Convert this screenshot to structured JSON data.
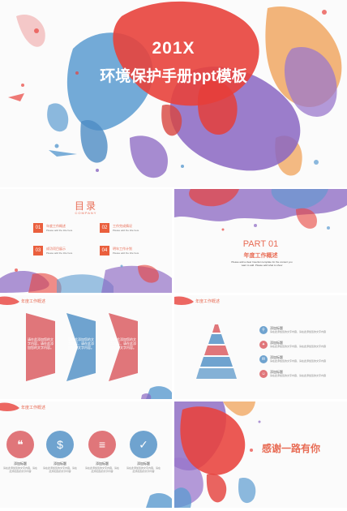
{
  "cover": {
    "year": "201X",
    "title": "环境保护手册ppt模板"
  },
  "toc": {
    "title": "目录",
    "subtitle": "COMPANY",
    "items": [
      {
        "num": "01",
        "label": "年度工作概述",
        "desc": "Please add the title here"
      },
      {
        "num": "02",
        "label": "工作完成情况",
        "desc": "Please add the title here"
      },
      {
        "num": "03",
        "label": "成功项目展示",
        "desc": "Please add the title here"
      },
      {
        "num": "04",
        "label": "明年工作计划",
        "desc": "Please add the title here"
      }
    ]
  },
  "part": {
    "number": "PART 01",
    "title": "年度工作概述",
    "desc": "Please add a clear Insertion template for the content you want to add. Please add what to show"
  },
  "section_header": "年度工作概述",
  "chevrons": [
    {
      "text": "请在此添加您的文字内容，请在此添加您的文字内容。",
      "color": "#e0767a"
    },
    {
      "text": "请在此添加您的文字内容，请在此添加您的文字内容。",
      "color": "#6fa3cf"
    },
    {
      "text": "请在此添加您的文字内容，请在此添加您的文字内容。",
      "color": "#e0767a"
    }
  ],
  "pyramid": {
    "items": [
      {
        "label": "添加标题",
        "desc": "请在此添加您的文字内容，请在此添加您的文字内容",
        "icon": "location-icon",
        "glyph": "⚲",
        "color": "#6fa3cf"
      },
      {
        "label": "添加标题",
        "desc": "请在此添加您的文字内容，请在此添加您的文字内容",
        "icon": "lightbulb-icon",
        "glyph": "✦",
        "color": "#e0767a"
      },
      {
        "label": "添加标题",
        "desc": "请在此添加您的文字内容，请在此添加您的文字内容",
        "icon": "chat-icon",
        "glyph": "✉",
        "color": "#6fa3cf"
      },
      {
        "label": "添加标题",
        "desc": "请在此添加您的文字内容，请在此添加您的文字内容",
        "icon": "person-icon",
        "glyph": "☺",
        "color": "#e0767a"
      }
    ]
  },
  "icons_row": [
    {
      "label": "添加标题",
      "desc": "请在此添加您的文字内容，请在此添加您的文字内容",
      "icon": "speech-bubble-icon",
      "glyph": "❝",
      "color": "#e0767a"
    },
    {
      "label": "添加标题",
      "desc": "请在此添加您的文字内容，请在此添加您的文字内容",
      "icon": "money-bag-icon",
      "glyph": "$",
      "color": "#6fa3cf"
    },
    {
      "label": "添加标题",
      "desc": "请在此添加您的文字内容，请在此添加您的文字内容",
      "icon": "coins-icon",
      "glyph": "≡",
      "color": "#e0767a"
    },
    {
      "label": "添加标题",
      "desc": "请在此添加您的文字内容，请在此添加您的文字内容",
      "icon": "thumbs-up-icon",
      "glyph": "✓",
      "color": "#6fa3cf"
    }
  ],
  "thanks": "感谢一路有你",
  "colors": {
    "accent": "#e86c55",
    "red": "#e0767a",
    "blue": "#6fa3cf"
  }
}
